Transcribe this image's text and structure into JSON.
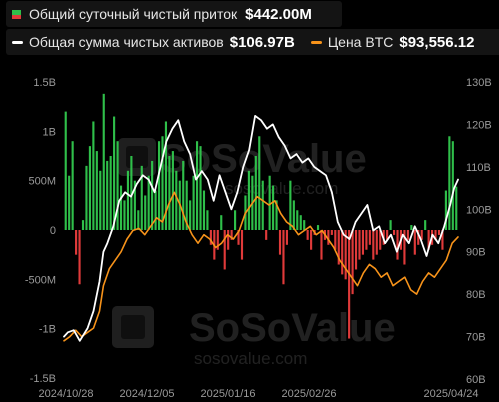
{
  "legend": {
    "inflow_label": "Общий суточный чистый приток",
    "inflow_value": "$442.00M",
    "assets_label": "Общая сумма чистых активов",
    "assets_value": "$106.97B",
    "btc_label": "Цена BTC",
    "btc_value": "$93,556.12"
  },
  "watermark": {
    "brand": "SoSoValue",
    "url": "sosovalue.com"
  },
  "colors": {
    "background": "#000000",
    "inflow_positive": "#2fbf4a",
    "inflow_negative": "#e03a3a",
    "net_assets_line": "#ffffff",
    "btc_price_line": "#f7931a",
    "tick_text": "#9a9a9a"
  },
  "chart_data": {
    "type": "bar+line",
    "x_ticks": [
      "2024/10/28",
      "2024/12/05",
      "2025/01/16",
      "2025/02/26",
      "2025/04/24"
    ],
    "y_left": {
      "ticks": [
        "1.5B",
        "1B",
        "500M",
        "0",
        "-500M",
        "-1B",
        "-1.5B"
      ],
      "range": [
        -1.5,
        1.5
      ],
      "unit": "B USD"
    },
    "y_right": {
      "ticks": [
        "130B",
        "120B",
        "110B",
        "100B",
        "90B",
        "80B",
        "70B",
        "60B"
      ],
      "range": [
        60,
        130
      ],
      "unit": "B USD"
    },
    "series": [
      {
        "name": "Общий суточный чистый приток",
        "type": "bar",
        "axis": "left",
        "unit": "B USD",
        "values": [
          1.2,
          0.55,
          0.9,
          -0.25,
          -0.55,
          0.1,
          0.65,
          0.85,
          1.1,
          0.8,
          0.6,
          1.38,
          0.7,
          0.75,
          1.15,
          0.9,
          0.45,
          0.3,
          0.6,
          0.75,
          0.5,
          0.2,
          0.65,
          0.35,
          0.55,
          0.7,
          0.4,
          0.9,
          0.95,
          1.1,
          0.75,
          0.8,
          0.6,
          0.5,
          0.7,
          0.5,
          0.3,
          0.55,
          0.9,
          0.85,
          0.4,
          0.2,
          -0.15,
          -0.3,
          -0.2,
          0.15,
          -0.4,
          -0.2,
          -0.1,
          0.2,
          -0.15,
          -0.3,
          0.35,
          0.6,
          0.55,
          0.75,
          0.95,
          0.5,
          -0.1,
          0.55,
          0.45,
          0.3,
          -0.25,
          -0.55,
          -0.15,
          0.5,
          0.3,
          0.2,
          0.15,
          0.1,
          -0.1,
          -0.2,
          -0.05,
          0.05,
          -0.3,
          -0.1,
          -0.15,
          -0.05,
          -0.2,
          -0.35,
          -0.45,
          -0.5,
          -1.1,
          -0.65,
          -0.4,
          -0.3,
          -0.25,
          -0.2,
          -0.15,
          -0.3,
          -0.25,
          -0.2,
          -0.15,
          -0.1,
          0.1,
          -0.05,
          -0.3,
          -0.2,
          -0.35,
          -0.1,
          0.05,
          -0.25,
          -0.15,
          -0.1,
          0.1,
          -0.2,
          -0.15,
          -0.1,
          -0.05,
          -0.2,
          0.4,
          0.95,
          0.9,
          0.44
        ]
      },
      {
        "name": "Общая сумма чистых активов",
        "type": "line",
        "axis": "right",
        "unit": "B USD",
        "x_frac": [
          0,
          0.01,
          0.025,
          0.04,
          0.06,
          0.075,
          0.09,
          0.1,
          0.11,
          0.125,
          0.14,
          0.155,
          0.17,
          0.185,
          0.2,
          0.215,
          0.23,
          0.245,
          0.26,
          0.275,
          0.29,
          0.305,
          0.32,
          0.335,
          0.35,
          0.365,
          0.38,
          0.395,
          0.41,
          0.425,
          0.44,
          0.455,
          0.47,
          0.485,
          0.5,
          0.515,
          0.53,
          0.545,
          0.56,
          0.575,
          0.59,
          0.605,
          0.62,
          0.635,
          0.65,
          0.665,
          0.68,
          0.695,
          0.71,
          0.725,
          0.74,
          0.755,
          0.77,
          0.785,
          0.8,
          0.815,
          0.83,
          0.845,
          0.86,
          0.875,
          0.89,
          0.905,
          0.92,
          0.935,
          0.95,
          0.965,
          0.98,
          0.99,
          1.0
        ],
        "values": [
          70,
          71,
          71.5,
          69,
          72,
          76,
          83,
          90,
          92,
          96,
          102,
          104,
          103,
          106,
          108,
          107,
          104,
          110,
          116,
          119,
          121,
          116,
          113,
          107,
          109,
          107,
          102,
          108,
          104,
          100,
          104,
          110,
          114,
          122,
          121,
          119,
          120,
          117,
          115,
          112,
          113,
          111,
          112,
          110,
          109,
          108,
          104,
          97,
          94,
          93,
          97,
          99,
          101,
          95,
          96,
          92,
          94,
          90,
          94,
          92,
          96,
          93,
          89,
          94,
          92,
          96,
          101,
          105,
          107
        ]
      },
      {
        "name": "Цена BTC",
        "type": "line",
        "axis": "right",
        "unit": "K USD",
        "x_frac": [
          0,
          0.015,
          0.03,
          0.045,
          0.06,
          0.075,
          0.09,
          0.1,
          0.115,
          0.13,
          0.145,
          0.16,
          0.175,
          0.19,
          0.205,
          0.22,
          0.235,
          0.25,
          0.265,
          0.28,
          0.295,
          0.31,
          0.325,
          0.34,
          0.355,
          0.37,
          0.385,
          0.4,
          0.415,
          0.43,
          0.445,
          0.46,
          0.475,
          0.49,
          0.505,
          0.52,
          0.535,
          0.55,
          0.565,
          0.58,
          0.595,
          0.61,
          0.625,
          0.64,
          0.655,
          0.67,
          0.685,
          0.7,
          0.715,
          0.73,
          0.745,
          0.76,
          0.775,
          0.79,
          0.805,
          0.82,
          0.835,
          0.85,
          0.865,
          0.88,
          0.895,
          0.91,
          0.925,
          0.94,
          0.955,
          0.97,
          0.985,
          1.0
        ],
        "values": [
          69,
          70,
          71.5,
          70,
          71,
          72,
          76,
          82,
          86,
          88,
          90,
          93,
          95,
          95.5,
          94,
          96,
          98,
          97,
          101,
          104,
          101,
          97,
          94,
          92,
          94,
          93,
          91,
          92,
          94,
          93,
          95,
          99,
          101,
          103,
          102,
          101,
          102,
          99,
          97,
          96,
          94,
          95,
          96,
          94,
          95,
          93,
          91,
          88,
          86,
          84,
          82,
          85,
          87,
          86,
          84,
          85,
          82,
          83,
          84,
          81,
          80,
          83,
          85,
          84,
          86,
          88,
          92,
          93.5
        ]
      }
    ],
    "legend_position": "top-left",
    "grid": false
  }
}
